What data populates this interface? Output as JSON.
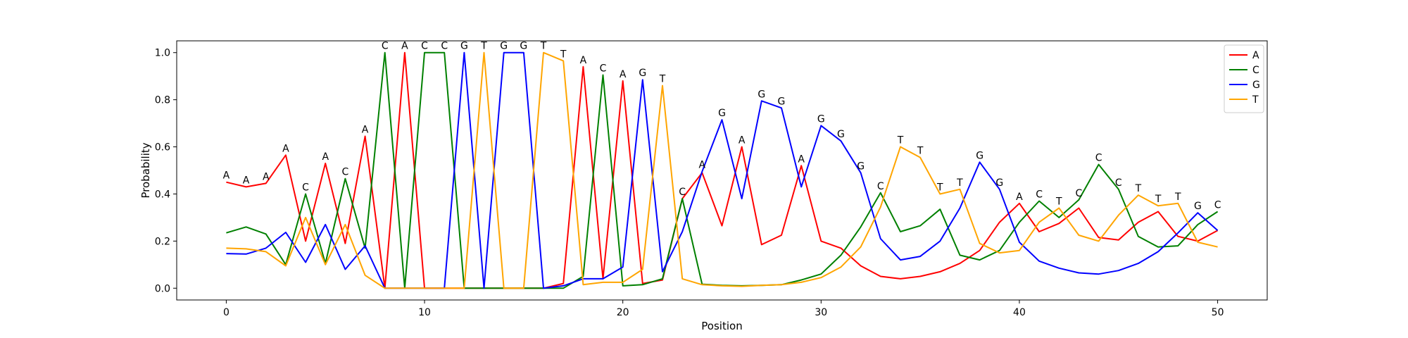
{
  "chart_data": {
    "type": "line",
    "title": "",
    "xlabel": "Position",
    "ylabel": "Probability",
    "xlim": [
      -2.5,
      52.5
    ],
    "ylim": [
      -0.05,
      1.05
    ],
    "xticks": [
      0,
      10,
      20,
      30,
      40,
      50
    ],
    "xtick_labels": [
      "0",
      "10",
      "20",
      "30",
      "40",
      "50"
    ],
    "yticks": [
      0.0,
      0.2,
      0.4,
      0.6,
      0.8,
      1.0
    ],
    "ytick_labels": [
      "0.0",
      "0.2",
      "0.4",
      "0.6",
      "0.8",
      "1.0"
    ],
    "grid": false,
    "legend": {
      "position": "top-right",
      "entries": [
        "A",
        "C",
        "G",
        "T"
      ]
    },
    "x": [
      0,
      1,
      2,
      3,
      4,
      5,
      6,
      7,
      8,
      9,
      10,
      11,
      12,
      13,
      14,
      15,
      16,
      17,
      18,
      19,
      20,
      21,
      22,
      23,
      24,
      25,
      26,
      27,
      28,
      29,
      30,
      31,
      32,
      33,
      34,
      35,
      36,
      37,
      38,
      39,
      40,
      41,
      42,
      43,
      44,
      45,
      46,
      47,
      48,
      49,
      50
    ],
    "series": [
      {
        "name": "A",
        "color": "#ff0000",
        "values": [
          0.45,
          0.43,
          0.445,
          0.565,
          0.2,
          0.53,
          0.19,
          0.645,
          0.0,
          1.0,
          0.0,
          0.0,
          0.0,
          0.0,
          0.0,
          0.0,
          0.0,
          0.02,
          0.94,
          0.04,
          0.88,
          0.02,
          0.035,
          0.38,
          0.49,
          0.265,
          0.6,
          0.185,
          0.225,
          0.52,
          0.2,
          0.17,
          0.095,
          0.05,
          0.04,
          0.05,
          0.07,
          0.105,
          0.16,
          0.28,
          0.36,
          0.24,
          0.275,
          0.34,
          0.215,
          0.205,
          0.28,
          0.325,
          0.22,
          0.2,
          0.245
        ]
      },
      {
        "name": "C",
        "color": "#008000",
        "values": [
          0.235,
          0.26,
          0.23,
          0.1,
          0.4,
          0.105,
          0.465,
          0.17,
          1.0,
          0.0,
          1.0,
          1.0,
          0.0,
          0.0,
          0.0,
          0.0,
          0.0,
          0.0,
          0.05,
          0.905,
          0.01,
          0.015,
          0.04,
          0.38,
          0.017,
          0.012,
          0.01,
          0.012,
          0.015,
          0.035,
          0.06,
          0.14,
          0.26,
          0.405,
          0.24,
          0.265,
          0.335,
          0.14,
          0.12,
          0.16,
          0.28,
          0.37,
          0.3,
          0.375,
          0.525,
          0.42,
          0.22,
          0.175,
          0.18,
          0.27,
          0.325
        ]
      },
      {
        "name": "G",
        "color": "#0000ff",
        "values": [
          0.147,
          0.145,
          0.17,
          0.237,
          0.11,
          0.27,
          0.08,
          0.18,
          0.0,
          0.0,
          0.0,
          0.0,
          1.0,
          0.0,
          1.0,
          1.0,
          0.0,
          0.01,
          0.04,
          0.04,
          0.09,
          0.885,
          0.07,
          0.24,
          0.495,
          0.715,
          0.38,
          0.795,
          0.765,
          0.43,
          0.69,
          0.625,
          0.49,
          0.21,
          0.12,
          0.135,
          0.2,
          0.34,
          0.535,
          0.42,
          0.195,
          0.115,
          0.085,
          0.065,
          0.06,
          0.075,
          0.105,
          0.155,
          0.235,
          0.32,
          0.245
        ]
      },
      {
        "name": "T",
        "color": "#ffa500",
        "values": [
          0.17,
          0.167,
          0.155,
          0.095,
          0.3,
          0.1,
          0.27,
          0.055,
          0.0,
          0.0,
          0.0,
          0.0,
          0.0,
          1.0,
          0.0,
          0.0,
          1.0,
          0.965,
          0.015,
          0.025,
          0.025,
          0.08,
          0.86,
          0.04,
          0.015,
          0.01,
          0.008,
          0.012,
          0.015,
          0.025,
          0.045,
          0.09,
          0.175,
          0.345,
          0.6,
          0.555,
          0.4,
          0.42,
          0.19,
          0.15,
          0.16,
          0.28,
          0.34,
          0.225,
          0.2,
          0.31,
          0.395,
          0.35,
          0.36,
          0.195,
          0.175
        ]
      }
    ],
    "annotations": [
      {
        "x": 0,
        "y": 0.45,
        "text": "A"
      },
      {
        "x": 1,
        "y": 0.43,
        "text": "A"
      },
      {
        "x": 2,
        "y": 0.445,
        "text": "A"
      },
      {
        "x": 3,
        "y": 0.565,
        "text": "A"
      },
      {
        "x": 4,
        "y": 0.4,
        "text": "C"
      },
      {
        "x": 5,
        "y": 0.53,
        "text": "A"
      },
      {
        "x": 6,
        "y": 0.465,
        "text": "C"
      },
      {
        "x": 7,
        "y": 0.645,
        "text": "A"
      },
      {
        "x": 8,
        "y": 1.0,
        "text": "C"
      },
      {
        "x": 9,
        "y": 1.0,
        "text": "A"
      },
      {
        "x": 10,
        "y": 1.0,
        "text": "C"
      },
      {
        "x": 11,
        "y": 1.0,
        "text": "C"
      },
      {
        "x": 12,
        "y": 1.0,
        "text": "G"
      },
      {
        "x": 13,
        "y": 1.0,
        "text": "T"
      },
      {
        "x": 14,
        "y": 1.0,
        "text": "G"
      },
      {
        "x": 15,
        "y": 1.0,
        "text": "G"
      },
      {
        "x": 16,
        "y": 1.0,
        "text": "T"
      },
      {
        "x": 17,
        "y": 0.965,
        "text": "T"
      },
      {
        "x": 18,
        "y": 0.94,
        "text": "A"
      },
      {
        "x": 19,
        "y": 0.905,
        "text": "C"
      },
      {
        "x": 20,
        "y": 0.88,
        "text": "A"
      },
      {
        "x": 21,
        "y": 0.885,
        "text": "G"
      },
      {
        "x": 22,
        "y": 0.86,
        "text": "T"
      },
      {
        "x": 23,
        "y": 0.38,
        "text": "C"
      },
      {
        "x": 24,
        "y": 0.495,
        "text": "A"
      },
      {
        "x": 25,
        "y": 0.715,
        "text": "G"
      },
      {
        "x": 26,
        "y": 0.6,
        "text": "A"
      },
      {
        "x": 27,
        "y": 0.795,
        "text": "G"
      },
      {
        "x": 28,
        "y": 0.765,
        "text": "G"
      },
      {
        "x": 29,
        "y": 0.52,
        "text": "A"
      },
      {
        "x": 30,
        "y": 0.69,
        "text": "G"
      },
      {
        "x": 31,
        "y": 0.625,
        "text": "G"
      },
      {
        "x": 32,
        "y": 0.49,
        "text": "G"
      },
      {
        "x": 33,
        "y": 0.405,
        "text": "C"
      },
      {
        "x": 34,
        "y": 0.6,
        "text": "T"
      },
      {
        "x": 35,
        "y": 0.555,
        "text": "T"
      },
      {
        "x": 36,
        "y": 0.4,
        "text": "T"
      },
      {
        "x": 37,
        "y": 0.42,
        "text": "T"
      },
      {
        "x": 38,
        "y": 0.535,
        "text": "G"
      },
      {
        "x": 39,
        "y": 0.42,
        "text": "G"
      },
      {
        "x": 40,
        "y": 0.36,
        "text": "A"
      },
      {
        "x": 41,
        "y": 0.37,
        "text": "C"
      },
      {
        "x": 42,
        "y": 0.34,
        "text": "T"
      },
      {
        "x": 43,
        "y": 0.375,
        "text": "C"
      },
      {
        "x": 44,
        "y": 0.525,
        "text": "C"
      },
      {
        "x": 45,
        "y": 0.42,
        "text": "C"
      },
      {
        "x": 46,
        "y": 0.395,
        "text": "T"
      },
      {
        "x": 47,
        "y": 0.35,
        "text": "T"
      },
      {
        "x": 48,
        "y": 0.36,
        "text": "T"
      },
      {
        "x": 49,
        "y": 0.32,
        "text": "G"
      },
      {
        "x": 50,
        "y": 0.325,
        "text": "C"
      }
    ]
  }
}
